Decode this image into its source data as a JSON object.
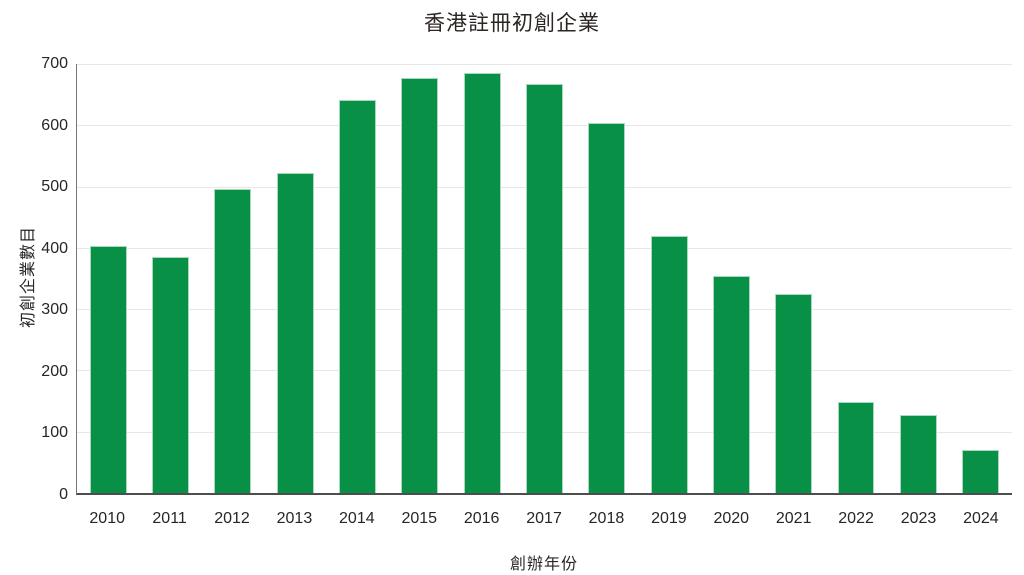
{
  "chart_data": {
    "type": "bar",
    "title": "香港註冊初創企業",
    "xlabel": "創辦年份",
    "ylabel": "初創企業數目",
    "categories": [
      "2010",
      "2011",
      "2012",
      "2013",
      "2014",
      "2015",
      "2016",
      "2017",
      "2018",
      "2019",
      "2020",
      "2021",
      "2022",
      "2023",
      "2024"
    ],
    "values": [
      403,
      385,
      496,
      522,
      641,
      677,
      685,
      667,
      604,
      420,
      354,
      324,
      149,
      128,
      70
    ],
    "ylim": [
      0,
      700
    ],
    "yticks": [
      0,
      100,
      200,
      300,
      400,
      500,
      600,
      700
    ],
    "grid": true,
    "legend": "none",
    "bar_color": "#089146",
    "bar_edge_color": "#a9d9bc",
    "gridline_color": "#e7e7e7",
    "axis_line_color": "#4d4d4d",
    "text_color": "#262626"
  }
}
